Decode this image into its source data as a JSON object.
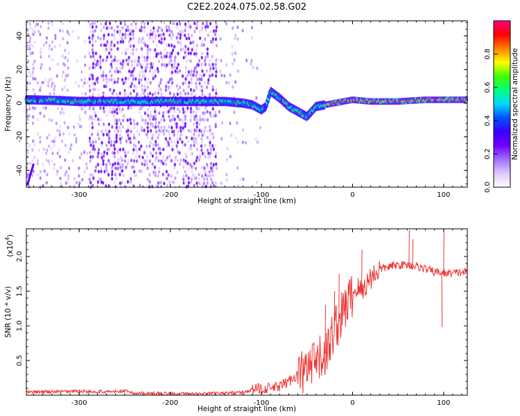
{
  "figure": {
    "title": "C2E2.2024.075.02.58.G02"
  },
  "chart_data": [
    {
      "type": "heatmap",
      "xlabel": "Height of straight line (km)",
      "ylabel": "Frequency (Hz)",
      "xlim": [
        -358,
        126
      ],
      "ylim": [
        -50,
        49
      ],
      "x_ticks": [
        -300,
        -200,
        -100,
        0,
        100
      ],
      "y_ticks": [
        -40,
        -20,
        0,
        20,
        40
      ],
      "colorbar": {
        "label": "Normalized spectral amplitude",
        "range": [
          0,
          1
        ],
        "ticks": [
          0.0,
          0.2,
          0.4,
          0.6,
          0.8
        ],
        "colormap": [
          "#ffffff",
          "#e0c8ff",
          "#a070ff",
          "#7000ff",
          "#3a00ff",
          "#0050ff",
          "#00d8ff",
          "#00ff80",
          "#40ff00",
          "#ffff00",
          "#ff8000",
          "#ff0000",
          "#ff0080"
        ]
      },
      "trace": [
        {
          "x": -355,
          "y": 2
        },
        {
          "x": -320,
          "y": 1.5
        },
        {
          "x": -300,
          "y": 1
        },
        {
          "x": -280,
          "y": 1
        },
        {
          "x": -250,
          "y": 1
        },
        {
          "x": -200,
          "y": 1
        },
        {
          "x": -160,
          "y": 1
        },
        {
          "x": -140,
          "y": 1
        },
        {
          "x": -120,
          "y": 0
        },
        {
          "x": -110,
          "y": -1
        },
        {
          "x": -100,
          "y": -4
        },
        {
          "x": -95,
          "y": -2
        },
        {
          "x": -90,
          "y": 7
        },
        {
          "x": -80,
          "y": 3
        },
        {
          "x": -70,
          "y": -2
        },
        {
          "x": -60,
          "y": -5
        },
        {
          "x": -50,
          "y": -8
        },
        {
          "x": -40,
          "y": -2
        },
        {
          "x": -30,
          "y": -1
        },
        {
          "x": -20,
          "y": 0
        },
        {
          "x": -10,
          "y": 1
        },
        {
          "x": 0,
          "y": 2
        },
        {
          "x": 20,
          "y": 1
        },
        {
          "x": 50,
          "y": 1
        },
        {
          "x": 80,
          "y": 2
        },
        {
          "x": 100,
          "y": 2
        },
        {
          "x": 125,
          "y": 2
        }
      ]
    },
    {
      "type": "line",
      "xlabel": "Height of straight line (km)",
      "ylabel": "SNR (10 * v/v)",
      "y_multiplier": "(x10",
      "y_multiplier_exp": "4",
      "y_multiplier_close": ")",
      "xlim": [
        -358,
        126
      ],
      "ylim": [
        0,
        2.4
      ],
      "x_ticks": [
        -300,
        -200,
        -100,
        0,
        100
      ],
      "y_ticks": [
        0.5,
        1.0,
        1.5,
        2.0
      ],
      "y_tick_labels": [
        "0.5",
        "1.0",
        "1.5",
        "2.0"
      ],
      "series": [
        {
          "color": "#ee3333",
          "x": [
            -358,
            -340,
            -320,
            -300,
            -280,
            -260,
            -250,
            -240,
            -220,
            -200,
            -180,
            -160,
            -140,
            -120,
            -110,
            -100,
            -90,
            -80,
            -70,
            -60,
            -50,
            -40,
            -30,
            -25,
            -20,
            -15,
            -10,
            -5,
            0,
            5,
            10,
            15,
            20,
            30,
            40,
            50,
            60,
            70,
            80,
            90,
            100,
            110,
            126
          ],
          "y": [
            0.04,
            0.05,
            0.05,
            0.06,
            0.05,
            0.05,
            0.06,
            0.03,
            0.03,
            0.02,
            0.02,
            0.02,
            0.03,
            0.04,
            0.08,
            0.1,
            0.1,
            0.12,
            0.2,
            0.3,
            0.35,
            0.45,
            0.6,
            0.7,
            1.0,
            1.05,
            1.2,
            1.35,
            1.45,
            1.55,
            1.5,
            1.6,
            1.7,
            1.82,
            1.85,
            1.88,
            1.88,
            1.86,
            1.82,
            1.78,
            1.76,
            1.76,
            1.78
          ]
        }
      ],
      "spikes": [
        {
          "x": -30,
          "y": 1.3
        },
        {
          "x": -20,
          "y": 1.5
        },
        {
          "x": -15,
          "y": 1.75
        },
        {
          "x": 10,
          "y": 2.1
        },
        {
          "x": 62,
          "y": 2.38
        },
        {
          "x": 66,
          "y": 2.25
        },
        {
          "x": 98,
          "y": 0.98
        },
        {
          "x": 100,
          "y": 2.35
        }
      ]
    }
  ]
}
